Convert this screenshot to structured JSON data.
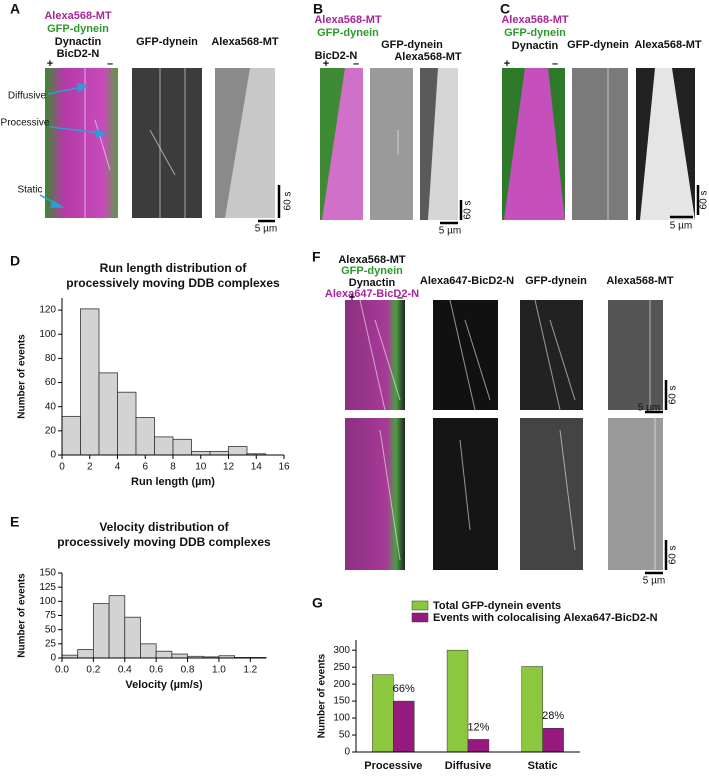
{
  "panel_letters": [
    "A",
    "B",
    "C",
    "D",
    "E",
    "F",
    "G"
  ],
  "panel_a": {
    "merge_labels": [
      "Alexa568-MT",
      "GFP-dynein",
      "Dynactin",
      "BicD2-N"
    ],
    "plus": "+",
    "minus": "–",
    "channel_labels": [
      "GFP-dynein",
      "Alexa568-MT"
    ],
    "annotations": [
      "Diffusive",
      "Processive",
      "Static"
    ],
    "time_scale": "60 s",
    "length_scale": "5 µm"
  },
  "panel_b": {
    "merge_labels": [
      "Alexa568-MT",
      "GFP-dynein",
      "BicD2-N"
    ],
    "plus": "+",
    "minus": "–",
    "channel_labels": [
      "GFP-dynein",
      "Alexa568-MT"
    ],
    "time_scale": "60 s",
    "length_scale": "5 µm"
  },
  "panel_c": {
    "merge_labels": [
      "Alexa568-MT",
      "GFP-dynein",
      "Dynactin"
    ],
    "plus": "+",
    "minus": "–",
    "channel_labels": [
      "GFP-dynein",
      "Alexa568-MT"
    ],
    "time_scale": "60 s",
    "length_scale": "5 µm"
  },
  "panel_f": {
    "merge_labels": [
      "Alexa568-MT",
      "GFP-dynein",
      "Dynactin",
      "Alexa647-BicD2-N"
    ],
    "plus": "+",
    "minus": "–",
    "channel_labels": [
      "Alexa647-BicD2-N",
      "GFP-dynein",
      "Alexa568-MT"
    ],
    "time_scales": [
      "60 s",
      "60 s"
    ],
    "length_scales": [
      "5 µm",
      "5 µm"
    ]
  },
  "chart_data": [
    {
      "type": "histogram",
      "title": [
        "Run length distribution of",
        "processively moving DDB complexes"
      ],
      "x_label": "Run length (µm)",
      "y_label": "Number of events",
      "color": "#d3d3d3",
      "bins": [
        0,
        1.333,
        2.667,
        4,
        5.333,
        6.667,
        8,
        9.333,
        10.667,
        12,
        13.333,
        14.667
      ],
      "values": [
        32,
        121,
        68,
        52,
        31,
        15,
        13,
        3,
        3,
        7,
        1
      ],
      "xlim": [
        0,
        16
      ],
      "xticks": [
        0,
        2,
        4,
        6,
        8,
        10,
        12,
        14,
        16
      ],
      "ylim": [
        0,
        130
      ],
      "yticks": [
        0,
        20,
        40,
        60,
        80,
        100,
        120
      ]
    },
    {
      "type": "histogram",
      "title": [
        "Velocity distribution of",
        "processively moving DDB complexes"
      ],
      "x_label": "Velocity (µm/s)",
      "y_label": "Number of events",
      "color": "#d3d3d3",
      "bins": [
        0,
        0.1,
        0.2,
        0.3,
        0.4,
        0.5,
        0.6,
        0.7,
        0.8,
        0.9,
        1.0,
        1.1,
        1.2,
        1.3
      ],
      "values": [
        5,
        15,
        96,
        110,
        72,
        25,
        12,
        7,
        3,
        2,
        4,
        1,
        1
      ],
      "xlim": [
        0,
        1.3
      ],
      "xticks": [
        {
          "value": 0,
          "label": "0.0"
        },
        0.2,
        0.4,
        0.6,
        0.8,
        {
          "value": 1,
          "label": "1.0"
        },
        1.2
      ],
      "ylim": [
        0,
        150
      ],
      "yticks": [
        0,
        25,
        50,
        75,
        100,
        125,
        150
      ]
    },
    {
      "type": "bar",
      "y_label": "Number of events",
      "legend": "top",
      "categories": [
        "Processive",
        "Diffusive",
        "Static"
      ],
      "series": [
        {
          "name": "Total GFP-dynein events",
          "color": "#8dc63f",
          "values": [
            228,
            300,
            252
          ]
        },
        {
          "name": "Events with colocalising Alexa647-BicD2-N",
          "color": "#96197e",
          "values": [
            150,
            37,
            70
          ]
        }
      ],
      "bar_annotations": [
        "66%",
        "12%",
        "28%"
      ],
      "ylim": [
        0,
        330
      ],
      "yticks": [
        0,
        50,
        100,
        150,
        200,
        250,
        300
      ]
    }
  ]
}
